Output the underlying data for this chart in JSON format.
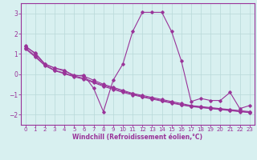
{
  "x": [
    0,
    1,
    2,
    3,
    4,
    5,
    6,
    7,
    8,
    9,
    10,
    11,
    12,
    13,
    14,
    15,
    16,
    17,
    18,
    19,
    20,
    21,
    22,
    23
  ],
  "y_main": [
    1.4,
    1.0,
    0.5,
    0.3,
    0.2,
    -0.1,
    -0.05,
    -0.7,
    -1.85,
    -0.3,
    0.5,
    2.1,
    3.05,
    3.05,
    3.05,
    2.1,
    0.65,
    -1.35,
    -1.2,
    -1.3,
    -1.3,
    -0.9,
    -1.7,
    -1.55
  ],
  "y_trend1": [
    1.35,
    1.05,
    0.5,
    0.3,
    0.15,
    -0.05,
    -0.1,
    -0.3,
    -0.5,
    -0.65,
    -0.8,
    -0.95,
    -1.05,
    -1.15,
    -1.25,
    -1.35,
    -1.45,
    -1.55,
    -1.6,
    -1.65,
    -1.7,
    -1.75,
    -1.8,
    -1.85
  ],
  "y_trend2": [
    1.3,
    0.9,
    0.45,
    0.2,
    0.05,
    -0.1,
    -0.2,
    -0.38,
    -0.55,
    -0.7,
    -0.85,
    -0.98,
    -1.1,
    -1.2,
    -1.3,
    -1.4,
    -1.5,
    -1.58,
    -1.63,
    -1.68,
    -1.73,
    -1.78,
    -1.83,
    -1.88
  ],
  "y_trend3": [
    1.25,
    0.85,
    0.42,
    0.17,
    0.02,
    -0.13,
    -0.25,
    -0.42,
    -0.6,
    -0.75,
    -0.9,
    -1.02,
    -1.13,
    -1.23,
    -1.33,
    -1.43,
    -1.52,
    -1.6,
    -1.65,
    -1.7,
    -1.75,
    -1.8,
    -1.85,
    -1.9
  ],
  "color": "#993399",
  "bg_color": "#d8f0f0",
  "xlabel": "Windchill (Refroidissement éolien,°C)",
  "ylim": [
    -2.5,
    3.5
  ],
  "xlim": [
    -0.5,
    23.5
  ],
  "yticks": [
    -2,
    -1,
    0,
    1,
    2,
    3
  ],
  "xticks": [
    0,
    1,
    2,
    3,
    4,
    5,
    6,
    7,
    8,
    9,
    10,
    11,
    12,
    13,
    14,
    15,
    16,
    17,
    18,
    19,
    20,
    21,
    22,
    23
  ],
  "marker": "D",
  "markersize": 1.8,
  "linewidth": 0.8,
  "tick_fontsize": 5.0,
  "xlabel_fontsize": 5.5
}
